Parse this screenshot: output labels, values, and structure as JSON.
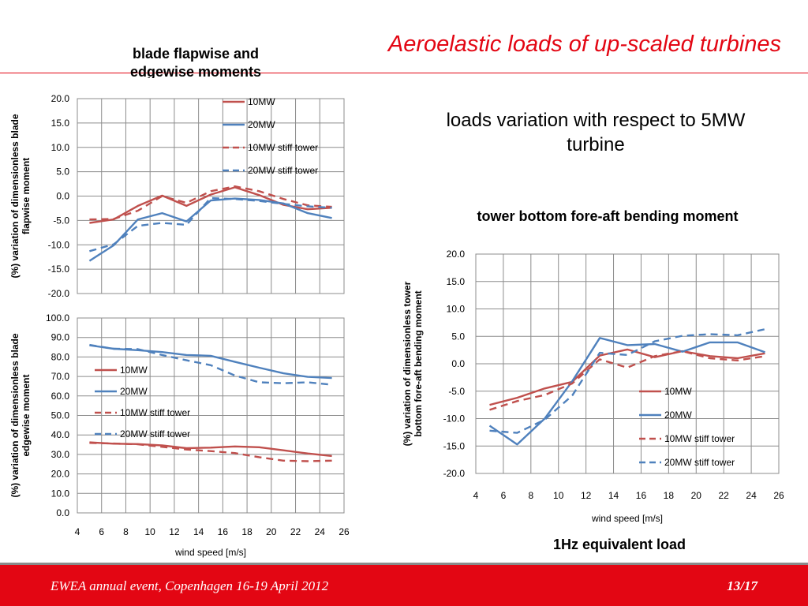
{
  "slide": {
    "title": "Aeroelastic loads of up-scaled turbines",
    "blade_heading": "blade flapwise and edgewise moments",
    "loads_text": "loads variation with respect to 5MW turbine",
    "tower_heading": "tower bottom fore-aft bending moment",
    "equivalent_load_label": "1Hz equivalent load",
    "footer_event": "EWEA annual event, Copenhagen 16-19 April 2012",
    "page_number": "13/17",
    "accent_color": "#e30613"
  },
  "chart_data": [
    {
      "id": "flap",
      "type": "line",
      "title": "",
      "xlabel": "",
      "ylabel": "(%) variation of dimensionless blade flapwise moment",
      "xlim": [
        4,
        26
      ],
      "ylim": [
        -20,
        20
      ],
      "xticks": [
        4,
        6,
        8,
        10,
        12,
        14,
        16,
        18,
        20,
        22,
        24,
        26
      ],
      "yticks": [
        "20.0",
        "15.0",
        "10.0",
        "5.0",
        "0.0",
        "-5.0",
        "-10.0",
        "-15.0",
        "-20.0"
      ],
      "show_xtick_labels": false,
      "grid": true,
      "legend": "top-right",
      "x": [
        5,
        7,
        9,
        11,
        13,
        15,
        17,
        19,
        21,
        23,
        25
      ],
      "series": [
        {
          "name": "10MW",
          "color": "#c0504d",
          "dash": false,
          "values": [
            -5.5,
            -4.8,
            -2.0,
            0.1,
            -2.0,
            0.3,
            1.8,
            0.2,
            -1.8,
            -2.7,
            -2.4
          ]
        },
        {
          "name": "20MW",
          "color": "#4f81bd",
          "dash": false,
          "values": [
            -13.3,
            -10.1,
            -4.8,
            -3.5,
            -5.2,
            -0.9,
            -0.5,
            -0.8,
            -1.5,
            -3.5,
            -4.5
          ]
        },
        {
          "name": "10MW stiff tower",
          "color": "#c0504d",
          "dash": true,
          "values": [
            -4.8,
            -4.7,
            -3.0,
            0.0,
            -1.4,
            1.0,
            2.0,
            1.0,
            -0.6,
            -1.9,
            -2.2
          ]
        },
        {
          "name": "20MW stiff tower",
          "color": "#4f81bd",
          "dash": true,
          "values": [
            -11.3,
            -9.9,
            -6.1,
            -5.5,
            -5.9,
            -0.4,
            -0.6,
            -1.0,
            -1.6,
            -2.1,
            -2.4
          ]
        }
      ]
    },
    {
      "id": "edge",
      "type": "line",
      "title": "",
      "xlabel": "wind speed [m/s]",
      "ylabel": "(%) variation of dimensionless blade edgewise moment",
      "xlim": [
        4,
        26
      ],
      "ylim": [
        0,
        100
      ],
      "xticks": [
        4,
        6,
        8,
        10,
        12,
        14,
        16,
        18,
        20,
        22,
        24,
        26
      ],
      "yticks": [
        "100.0",
        "90.0",
        "80.0",
        "70.0",
        "60.0",
        "50.0",
        "40.0",
        "30.0",
        "20.0",
        "10.0",
        "0.0"
      ],
      "show_xtick_labels": true,
      "grid": true,
      "legend": "left",
      "x": [
        5,
        7,
        9,
        11,
        13,
        15,
        17,
        19,
        21,
        23,
        25
      ],
      "series": [
        {
          "name": "10MW",
          "color": "#c0504d",
          "dash": false,
          "values": [
            36.2,
            35.5,
            35.3,
            34.6,
            33.2,
            33.5,
            34.1,
            33.7,
            32.1,
            30.5,
            29.2
          ]
        },
        {
          "name": "20MW",
          "color": "#4f81bd",
          "dash": false,
          "values": [
            86.0,
            84.2,
            83.5,
            82.5,
            81.0,
            80.6,
            77.5,
            74.5,
            71.6,
            69.8,
            69.2
          ]
        },
        {
          "name": "10MW stiff tower",
          "color": "#c0504d",
          "dash": true,
          "values": [
            35.9,
            35.6,
            35.2,
            33.9,
            32.5,
            31.7,
            30.7,
            28.6,
            26.8,
            26.5,
            26.8
          ]
        },
        {
          "name": "20MW stiff tower",
          "color": "#4f81bd",
          "dash": true,
          "values": [
            86.2,
            84.2,
            84.0,
            81.0,
            78.3,
            75.8,
            70.5,
            67.0,
            66.5,
            67.0,
            65.8
          ]
        }
      ]
    },
    {
      "id": "tower",
      "type": "line",
      "title": "",
      "xlabel": "wind speed [m/s]",
      "ylabel": "(%) variation of dimensionless tower bottom fore-aft bending moment",
      "xlim": [
        4,
        26
      ],
      "ylim": [
        -20,
        20
      ],
      "xticks": [
        4,
        6,
        8,
        10,
        12,
        14,
        16,
        18,
        20,
        22,
        24,
        26
      ],
      "yticks": [
        "20.0",
        "15.0",
        "10.0",
        "5.0",
        "0.0",
        "-5.0",
        "-10.0",
        "-15.0",
        "-20.0"
      ],
      "show_xtick_labels": true,
      "grid": true,
      "legend": "lower-right",
      "x": [
        5,
        7,
        9,
        11,
        13,
        15,
        17,
        19,
        21,
        23,
        25
      ],
      "series": [
        {
          "name": "10MW",
          "color": "#c0504d",
          "dash": false,
          "values": [
            -7.5,
            -6.2,
            -4.5,
            -3.3,
            1.5,
            2.6,
            1.2,
            2.3,
            1.4,
            1.0,
            1.9
          ]
        },
        {
          "name": "20MW",
          "color": "#4f81bd",
          "dash": false,
          "values": [
            -11.3,
            -14.7,
            -10.0,
            -3.2,
            4.7,
            3.4,
            3.6,
            2.2,
            3.9,
            3.9,
            2.1
          ]
        },
        {
          "name": "10MW stiff tower",
          "color": "#c0504d",
          "dash": true,
          "values": [
            -8.4,
            -6.8,
            -5.7,
            -3.6,
            0.8,
            -0.7,
            1.4,
            2.3,
            1.0,
            0.6,
            1.4
          ]
        },
        {
          "name": "20MW stiff tower",
          "color": "#4f81bd",
          "dash": true,
          "values": [
            -12.2,
            -12.6,
            -10.2,
            -5.8,
            2.0,
            1.6,
            4.1,
            5.1,
            5.4,
            5.2,
            6.3
          ]
        }
      ]
    }
  ]
}
